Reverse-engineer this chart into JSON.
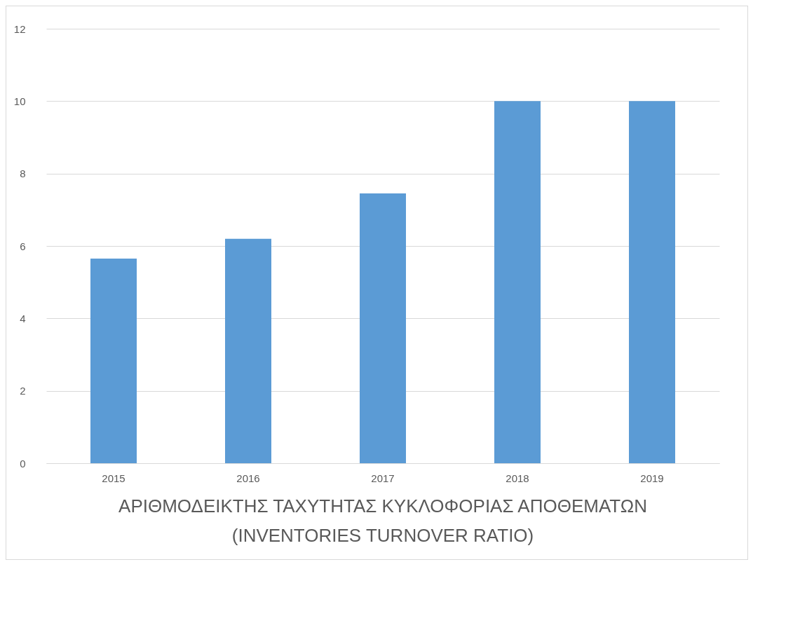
{
  "chart_data": {
    "type": "bar",
    "title": "ΑΡΙΘΜΟΔΕΙΚΤΗΣ ΤΑΧΥΤΗΤΑΣ ΚΥΚΛΟΦΟΡΙΑΣ ΑΠΟΘΕΜΑΤΩΝ\n(INVENTORIES TURNOVER RATIO)",
    "categories": [
      "2015",
      "2016",
      "2017",
      "2018",
      "2019"
    ],
    "values": [
      5.65,
      6.2,
      7.45,
      10,
      10
    ],
    "color": "#5b9bd5",
    "ylim": [
      0,
      12
    ],
    "yticks": [
      0,
      2,
      4,
      6,
      8,
      10,
      12
    ],
    "grid": "y"
  }
}
